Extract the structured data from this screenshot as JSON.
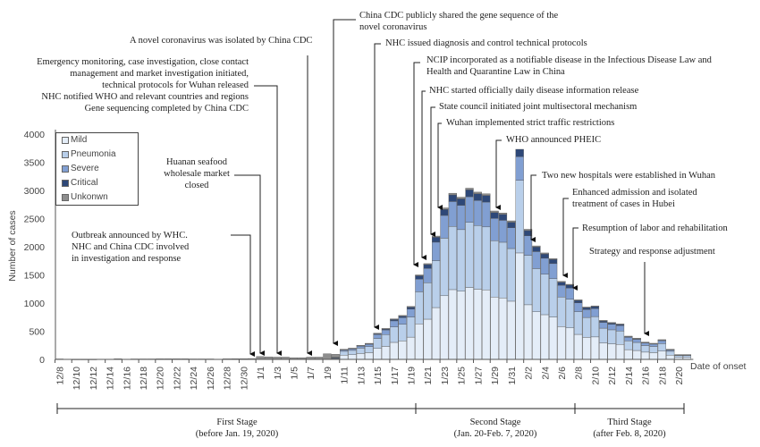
{
  "chart_data": {
    "type": "bar",
    "stacked": true,
    "ylabel": "Number of cases",
    "xlabel": "Date of onset",
    "ylim": [
      0,
      4000
    ],
    "yticks": [
      0,
      500,
      1000,
      1500,
      2000,
      2500,
      3000,
      3500,
      4000
    ],
    "xtick_labels": [
      "12/8",
      "12/10",
      "12/12",
      "12/14",
      "12/16",
      "12/18",
      "12/20",
      "12/22",
      "12/24",
      "12/26",
      "12/28",
      "12/30",
      "1/1",
      "1/3",
      "1/5",
      "1/7",
      "1/9",
      "1/11",
      "1/13",
      "1/15",
      "1/17",
      "1/19",
      "1/21",
      "1/23",
      "1/25",
      "1/27",
      "1/29",
      "1/31",
      "2/2",
      "2/4",
      "2/6",
      "2/8",
      "2/10",
      "2/12",
      "2/14",
      "2/16",
      "2/18",
      "2/20"
    ],
    "first_date": "12/8",
    "last_date": "2/21",
    "legend": {
      "placement": "top-left",
      "entries": [
        "Mild",
        "Pneumonia",
        "Severe",
        "Critical",
        "Unkonwn"
      ]
    },
    "colors": {
      "Mild": "#e4edf8",
      "Pneumonia": "#b9cfea",
      "Severe": "#819fd2",
      "Critical": "#2e4878",
      "Unkonwn": "#8e8e8e"
    },
    "series": [
      {
        "name": "Mild",
        "values": [
          0,
          0,
          0,
          0,
          0,
          0,
          0,
          0,
          0,
          0,
          0,
          0,
          0,
          0,
          0,
          0,
          0,
          0,
          0,
          0,
          0,
          0,
          0,
          0,
          0,
          0,
          0,
          0,
          0,
          0,
          0,
          0,
          0,
          10,
          76,
          84,
          105,
          120,
          195,
          231,
          302,
          328,
          395,
          630,
          714,
          920,
          1130,
          1239,
          1210,
          1277,
          1247,
          1235,
          1107,
          1092,
          1033,
          1890,
          970,
          846,
          794,
          752,
          582,
          560,
          444,
          391,
          399,
          291,
          276,
          265,
          173,
          158,
          129,
          120,
          147,
          76,
          36,
          36
        ]
      },
      {
        "name": "Pneumonia",
        "values": [
          0,
          0,
          0,
          0,
          0,
          0,
          0,
          0,
          0,
          0,
          0,
          0,
          0,
          0,
          0,
          0,
          0,
          0,
          0,
          0,
          0,
          0,
          0,
          0,
          0,
          0,
          0,
          0,
          0,
          0,
          0,
          0,
          0,
          15,
          68,
          76,
          95,
          108,
          177,
          209,
          274,
          296,
          357,
          570,
          646,
          832,
          1022,
          1121,
          1094,
          1155,
          1129,
          1117,
          1001,
          988,
          935,
          1290,
          878,
          766,
          718,
          680,
          526,
          507,
          402,
          353,
          361,
          263,
          249,
          239,
          157,
          143,
          117,
          109,
          133,
          68,
          32,
          32
        ]
      },
      {
        "name": "Severe",
        "values": [
          0,
          0,
          0,
          0,
          0,
          0,
          0,
          0,
          0,
          0,
          0,
          0,
          0,
          0,
          0,
          0,
          0,
          0,
          0,
          0,
          0,
          0,
          0,
          0,
          0,
          0,
          0,
          0,
          0,
          0,
          0,
          0,
          0,
          8,
          27,
          30,
          38,
          43,
          70,
          83,
          108,
          117,
          141,
          225,
          255,
          329,
          404,
          443,
          432,
          456,
          446,
          441,
          395,
          390,
          369,
          420,
          347,
          302,
          284,
          269,
          208,
          200,
          159,
          140,
          143,
          104,
          98,
          95,
          62,
          56,
          46,
          43,
          53,
          27,
          13,
          13
        ]
      },
      {
        "name": "Critical",
        "values": [
          0,
          0,
          0,
          0,
          0,
          0,
          0,
          0,
          0,
          0,
          0,
          0,
          0,
          0,
          0,
          0,
          0,
          0,
          0,
          0,
          0,
          0,
          0,
          0,
          0,
          0,
          0,
          0,
          0,
          0,
          0,
          0,
          0,
          4,
          7,
          8,
          10,
          11,
          19,
          22,
          29,
          31,
          38,
          60,
          68,
          88,
          108,
          118,
          115,
          122,
          119,
          118,
          105,
          104,
          98,
          130,
          92,
          81,
          76,
          72,
          55,
          53,
          42,
          37,
          38,
          28,
          26,
          25,
          17,
          15,
          12,
          11,
          14,
          7,
          3,
          3
        ]
      },
      {
        "name": "Unkonwn",
        "values": [
          8,
          0,
          5,
          5,
          5,
          0,
          0,
          10,
          0,
          8,
          8,
          8,
          10,
          10,
          10,
          10,
          8,
          8,
          8,
          0,
          10,
          12,
          12,
          15,
          50,
          45,
          40,
          40,
          30,
          30,
          40,
          40,
          100,
          53,
          2,
          2,
          2,
          3,
          4,
          5,
          7,
          8,
          9,
          15,
          17,
          21,
          26,
          29,
          29,
          30,
          29,
          29,
          27,
          26,
          25,
          0,
          23,
          20,
          18,
          17,
          14,
          13,
          11,
          9,
          9,
          7,
          7,
          6,
          4,
          4,
          3,
          3,
          3,
          2,
          1,
          1
        ]
      }
    ],
    "stages": [
      {
        "name": "First Stage",
        "period": "(before Jan. 19, 2020)"
      },
      {
        "name": "Second Stage",
        "period": "(Jan. 20-Feb. 7, 2020)"
      },
      {
        "name": "Third Stage",
        "period": "(after Feb. 8, 2020)"
      }
    ],
    "annotations": {
      "outbreak": "Outbreak announced by WHC.",
      "outbreak2": "NHC and China CDC involved",
      "outbreak3": "in investigation and response",
      "huanan1": "Huanan seafood",
      "huanan2": "wholesale market",
      "huanan3": "closed",
      "emerg1": "Emergency monitoring, case investigation, close contact",
      "emerg2": "management and market investigation initiated,",
      "emerg3": "technical protocols for Wuhan released",
      "notified": "NHC notified WHO and relevant countries and regions",
      "geneseq": "Gene sequencing completed by China CDC",
      "isolated": "A novel coronavirus was isolated by China CDC",
      "shared1": "China CDC publicly shared the gene sequence of the",
      "shared2": "novel coronavirus",
      "diagnosis": "NHC issued diagnosis and control technical protocols",
      "ncip1": "NCIP incorporated as a notifiable disease in the Infectious Disease Law and",
      "ncip2": "Health and Quarantine Law in China",
      "daily": "NHC started officially daily disease information release",
      "state": "State council initiated joint multisectoral mechanism",
      "traffic": "Wuhan implemented strict traffic restrictions",
      "pheic": "WHO announced PHEIC",
      "hospitals": "Two new hospitals were established in Wuhan",
      "enhanced1": "Enhanced admission and isolated",
      "enhanced2": "treatment of cases in Hubei",
      "resumption": "Resumption of labor and rehabilitation",
      "strategy": "Strategy and response adjustment"
    }
  }
}
